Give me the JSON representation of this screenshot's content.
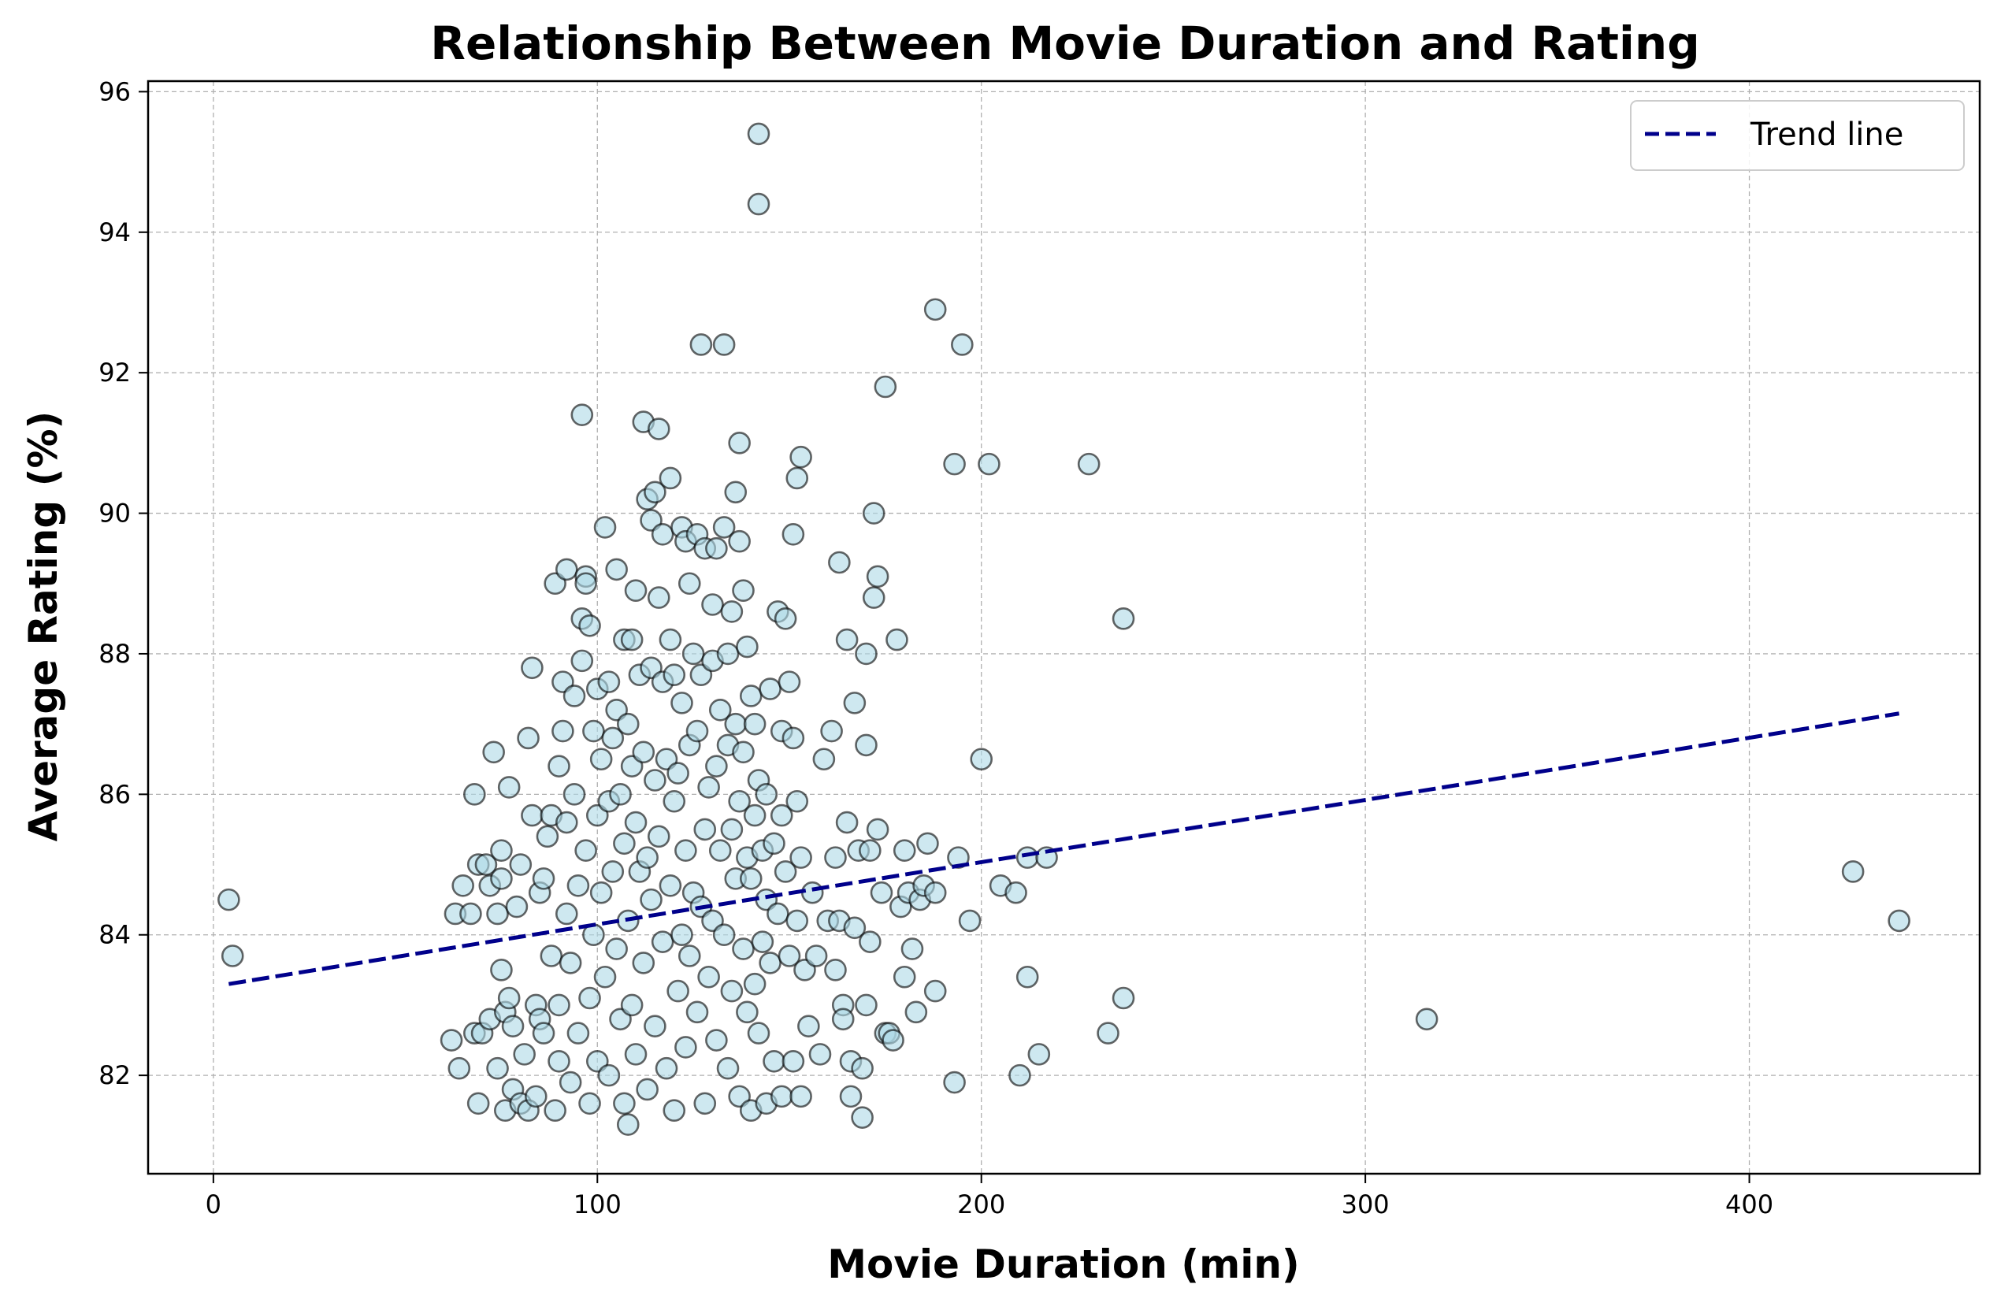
{
  "chart_data": {
    "type": "scatter",
    "title": "Relationship Between Movie Duration and Rating",
    "xlabel": "Movie Duration (min)",
    "ylabel": "Average Rating (%)",
    "xlim": [
      -17,
      460
    ],
    "ylim": [
      80.6,
      96.15
    ],
    "xticks": [
      0,
      100,
      200,
      300,
      400
    ],
    "yticks": [
      82,
      84,
      86,
      88,
      90,
      92,
      94,
      96
    ],
    "grid": true,
    "legend": {
      "placement": "top-right",
      "entries": [
        "Trend line"
      ]
    },
    "colors": {
      "points_fill": "#add8e6",
      "points_edge": "#000000",
      "trend": "#00008b",
      "grid": "#b0b0b0"
    },
    "trend_line": {
      "x": [
        4,
        439
      ],
      "y": [
        83.3,
        87.15
      ],
      "style": "dashed"
    },
    "points": [
      [
        4,
        84.5
      ],
      [
        5,
        83.7
      ],
      [
        62,
        82.5
      ],
      [
        63,
        84.3
      ],
      [
        64,
        82.1
      ],
      [
        65,
        84.7
      ],
      [
        67,
        84.3
      ],
      [
        68,
        86.0
      ],
      [
        68,
        82.6
      ],
      [
        69,
        85.0
      ],
      [
        69,
        81.6
      ],
      [
        70,
        82.6
      ],
      [
        71,
        85.0
      ],
      [
        72,
        82.8
      ],
      [
        72,
        84.7
      ],
      [
        73,
        86.6
      ],
      [
        74,
        82.1
      ],
      [
        74,
        84.3
      ],
      [
        75,
        84.8
      ],
      [
        75,
        83.5
      ],
      [
        75,
        85.2
      ],
      [
        76,
        82.9
      ],
      [
        76,
        81.5
      ],
      [
        77,
        86.1
      ],
      [
        77,
        83.1
      ],
      [
        78,
        82.7
      ],
      [
        78,
        81.8
      ],
      [
        79,
        84.4
      ],
      [
        80,
        85.0
      ],
      [
        80,
        81.6
      ],
      [
        81,
        82.3
      ],
      [
        82,
        81.5
      ],
      [
        82,
        86.8
      ],
      [
        83,
        87.8
      ],
      [
        83,
        85.7
      ],
      [
        84,
        83.0
      ],
      [
        84,
        81.7
      ],
      [
        85,
        84.6
      ],
      [
        85,
        82.8
      ],
      [
        86,
        82.6
      ],
      [
        86,
        84.8
      ],
      [
        87,
        85.4
      ],
      [
        88,
        83.7
      ],
      [
        88,
        85.7
      ],
      [
        89,
        89.0
      ],
      [
        89,
        81.5
      ],
      [
        90,
        86.4
      ],
      [
        90,
        83.0
      ],
      [
        90,
        82.2
      ],
      [
        91,
        87.6
      ],
      [
        91,
        86.9
      ],
      [
        92,
        89.2
      ],
      [
        92,
        85.6
      ],
      [
        92,
        84.3
      ],
      [
        93,
        81.9
      ],
      [
        93,
        83.6
      ],
      [
        94,
        87.4
      ],
      [
        94,
        86.0
      ],
      [
        95,
        84.7
      ],
      [
        95,
        82.6
      ],
      [
        96,
        91.4
      ],
      [
        96,
        88.5
      ],
      [
        96,
        87.9
      ],
      [
        97,
        89.1
      ],
      [
        97,
        89.0
      ],
      [
        97,
        85.2
      ],
      [
        98,
        88.4
      ],
      [
        98,
        83.1
      ],
      [
        98,
        81.6
      ],
      [
        99,
        86.9
      ],
      [
        99,
        84.0
      ],
      [
        100,
        87.5
      ],
      [
        100,
        85.7
      ],
      [
        100,
        82.2
      ],
      [
        101,
        86.5
      ],
      [
        101,
        84.6
      ],
      [
        102,
        89.8
      ],
      [
        102,
        83.4
      ],
      [
        103,
        87.6
      ],
      [
        103,
        85.9
      ],
      [
        103,
        82.0
      ],
      [
        104,
        86.8
      ],
      [
        104,
        84.9
      ],
      [
        105,
        89.2
      ],
      [
        105,
        87.2
      ],
      [
        105,
        83.8
      ],
      [
        106,
        86.0
      ],
      [
        106,
        82.8
      ],
      [
        107,
        88.2
      ],
      [
        107,
        85.3
      ],
      [
        107,
        81.6
      ],
      [
        108,
        87.0
      ],
      [
        108,
        84.2
      ],
      [
        108,
        81.3
      ],
      [
        109,
        88.2
      ],
      [
        109,
        86.4
      ],
      [
        109,
        83.0
      ],
      [
        110,
        88.9
      ],
      [
        110,
        85.6
      ],
      [
        110,
        82.3
      ],
      [
        111,
        87.7
      ],
      [
        111,
        84.9
      ],
      [
        112,
        91.3
      ],
      [
        112,
        86.6
      ],
      [
        112,
        83.6
      ],
      [
        113,
        90.2
      ],
      [
        113,
        85.1
      ],
      [
        113,
        81.8
      ],
      [
        114,
        89.9
      ],
      [
        114,
        87.8
      ],
      [
        114,
        84.5
      ],
      [
        115,
        90.3
      ],
      [
        115,
        86.2
      ],
      [
        115,
        82.7
      ],
      [
        116,
        91.2
      ],
      [
        116,
        88.8
      ],
      [
        116,
        85.4
      ],
      [
        117,
        89.7
      ],
      [
        117,
        87.6
      ],
      [
        117,
        83.9
      ],
      [
        118,
        86.5
      ],
      [
        118,
        82.1
      ],
      [
        119,
        90.5
      ],
      [
        119,
        88.2
      ],
      [
        119,
        84.7
      ],
      [
        120,
        87.7
      ],
      [
        120,
        85.9
      ],
      [
        120,
        81.5
      ],
      [
        121,
        86.3
      ],
      [
        121,
        83.2
      ],
      [
        122,
        89.8
      ],
      [
        122,
        87.3
      ],
      [
        122,
        84.0
      ],
      [
        123,
        89.6
      ],
      [
        123,
        85.2
      ],
      [
        123,
        82.4
      ],
      [
        124,
        89.0
      ],
      [
        124,
        86.7
      ],
      [
        124,
        83.7
      ],
      [
        125,
        88.0
      ],
      [
        125,
        84.6
      ],
      [
        126,
        89.7
      ],
      [
        126,
        86.9
      ],
      [
        126,
        82.9
      ],
      [
        127,
        92.4
      ],
      [
        127,
        87.7
      ],
      [
        127,
        84.4
      ],
      [
        128,
        89.5
      ],
      [
        128,
        85.5
      ],
      [
        128,
        81.6
      ],
      [
        129,
        86.1
      ],
      [
        129,
        83.4
      ],
      [
        130,
        88.7
      ],
      [
        130,
        87.9
      ],
      [
        130,
        84.2
      ],
      [
        131,
        89.5
      ],
      [
        131,
        86.4
      ],
      [
        131,
        82.5
      ],
      [
        132,
        87.2
      ],
      [
        132,
        85.2
      ],
      [
        133,
        92.4
      ],
      [
        133,
        89.8
      ],
      [
        133,
        84.0
      ],
      [
        134,
        88.0
      ],
      [
        134,
        86.7
      ],
      [
        134,
        82.1
      ],
      [
        135,
        88.6
      ],
      [
        135,
        85.5
      ],
      [
        135,
        83.2
      ],
      [
        136,
        90.3
      ],
      [
        136,
        87.0
      ],
      [
        136,
        84.8
      ],
      [
        137,
        91.0
      ],
      [
        137,
        89.6
      ],
      [
        137,
        85.9
      ],
      [
        137,
        81.7
      ],
      [
        138,
        88.9
      ],
      [
        138,
        86.6
      ],
      [
        138,
        83.8
      ],
      [
        139,
        88.1
      ],
      [
        139,
        85.1
      ],
      [
        139,
        82.9
      ],
      [
        140,
        87.4
      ],
      [
        140,
        84.8
      ],
      [
        140,
        81.5
      ],
      [
        141,
        87.0
      ],
      [
        141,
        85.7
      ],
      [
        141,
        83.3
      ],
      [
        142,
        95.4
      ],
      [
        142,
        94.4
      ],
      [
        142,
        86.2
      ],
      [
        142,
        82.6
      ],
      [
        143,
        85.2
      ],
      [
        143,
        83.9
      ],
      [
        144,
        86.0
      ],
      [
        144,
        84.5
      ],
      [
        144,
        81.6
      ],
      [
        145,
        87.5
      ],
      [
        145,
        83.6
      ],
      [
        146,
        85.3
      ],
      [
        146,
        82.2
      ],
      [
        147,
        88.6
      ],
      [
        147,
        84.3
      ],
      [
        148,
        86.9
      ],
      [
        148,
        85.7
      ],
      [
        148,
        81.7
      ],
      [
        149,
        88.5
      ],
      [
        149,
        84.9
      ],
      [
        150,
        87.6
      ],
      [
        150,
        83.7
      ],
      [
        151,
        89.7
      ],
      [
        151,
        86.8
      ],
      [
        151,
        82.2
      ],
      [
        152,
        90.5
      ],
      [
        152,
        85.9
      ],
      [
        152,
        84.2
      ],
      [
        153,
        90.8
      ],
      [
        153,
        85.1
      ],
      [
        153,
        81.7
      ],
      [
        154,
        83.5
      ],
      [
        155,
        82.7
      ],
      [
        156,
        84.6
      ],
      [
        157,
        83.7
      ],
      [
        158,
        82.3
      ],
      [
        159,
        86.5
      ],
      [
        160,
        84.2
      ],
      [
        161,
        86.9
      ],
      [
        162,
        85.1
      ],
      [
        162,
        83.5
      ],
      [
        163,
        89.3
      ],
      [
        163,
        84.2
      ],
      [
        164,
        83.0
      ],
      [
        164,
        82.8
      ],
      [
        165,
        88.2
      ],
      [
        165,
        85.6
      ],
      [
        166,
        81.7
      ],
      [
        166,
        82.2
      ],
      [
        167,
        87.3
      ],
      [
        167,
        84.1
      ],
      [
        168,
        85.2
      ],
      [
        169,
        81.4
      ],
      [
        169,
        82.1
      ],
      [
        170,
        88.0
      ],
      [
        170,
        86.7
      ],
      [
        170,
        83.0
      ],
      [
        171,
        85.2
      ],
      [
        171,
        83.9
      ],
      [
        172,
        90.0
      ],
      [
        172,
        88.8
      ],
      [
        173,
        89.1
      ],
      [
        173,
        85.5
      ],
      [
        174,
        84.6
      ],
      [
        175,
        91.8
      ],
      [
        175,
        82.6
      ],
      [
        176,
        82.6
      ],
      [
        177,
        82.5
      ],
      [
        178,
        88.2
      ],
      [
        179,
        84.4
      ],
      [
        180,
        83.4
      ],
      [
        180,
        85.2
      ],
      [
        181,
        84.6
      ],
      [
        182,
        83.8
      ],
      [
        183,
        82.9
      ],
      [
        184,
        84.5
      ],
      [
        185,
        84.7
      ],
      [
        186,
        85.3
      ],
      [
        188,
        92.9
      ],
      [
        188,
        84.6
      ],
      [
        188,
        83.2
      ],
      [
        193,
        90.7
      ],
      [
        193,
        81.9
      ],
      [
        194,
        85.1
      ],
      [
        195,
        92.4
      ],
      [
        197,
        84.2
      ],
      [
        200,
        86.5
      ],
      [
        202,
        90.7
      ],
      [
        205,
        84.7
      ],
      [
        209,
        84.6
      ],
      [
        210,
        82.0
      ],
      [
        212,
        85.1
      ],
      [
        212,
        83.4
      ],
      [
        215,
        82.3
      ],
      [
        217,
        85.1
      ],
      [
        228,
        90.7
      ],
      [
        233,
        82.6
      ],
      [
        237,
        88.5
      ],
      [
        237,
        83.1
      ],
      [
        316,
        82.8
      ],
      [
        427,
        84.9
      ],
      [
        439,
        84.2
      ]
    ]
  }
}
